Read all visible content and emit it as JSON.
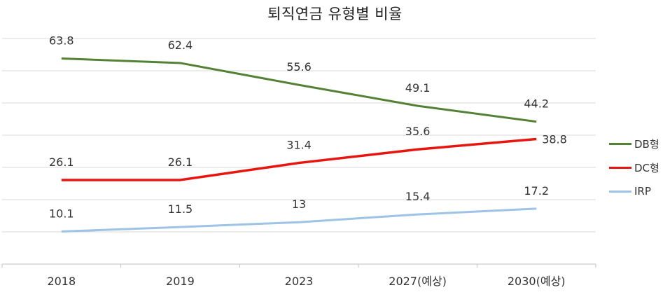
{
  "chart_data": {
    "type": "line",
    "title": "퇴직연금 유형별 비율",
    "categories": [
      "2018",
      "2019",
      "2023",
      "2027(예상)",
      "2030(예상)"
    ],
    "series": [
      {
        "name": "DB형",
        "values": [
          63.8,
          62.4,
          55.6,
          49.1,
          44.2
        ],
        "color": "#548235"
      },
      {
        "name": "DC형",
        "values": [
          26.1,
          26.1,
          31.4,
          35.6,
          38.8
        ],
        "color": "#e8150e"
      },
      {
        "name": "IRP",
        "values": [
          10.1,
          11.5,
          13,
          15.4,
          17.2
        ],
        "color": "#9dc3e6"
      }
    ],
    "xlabel": "",
    "ylabel": "",
    "ylim": [
      0,
      70
    ],
    "grid": true,
    "y_axis_labels_shown": false,
    "legend_position": "right",
    "colors": {
      "grid": "#d9d9d9",
      "axis": "#bfbfbf",
      "text": "#333333"
    }
  }
}
